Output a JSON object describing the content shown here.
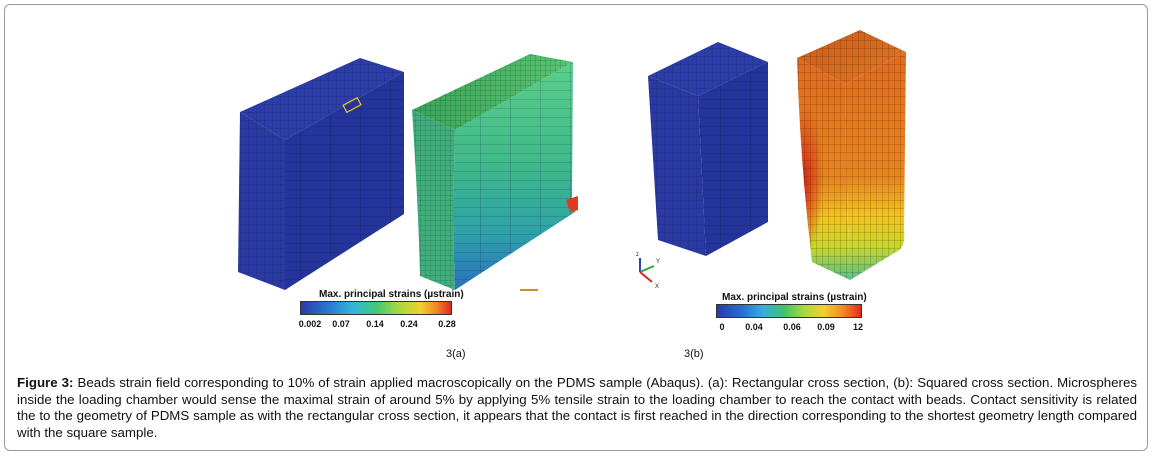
{
  "figure": {
    "panel_a": {
      "label": "3(a)",
      "legend_title": "Max. principal strains (µstrain)",
      "ticks": [
        "0.002",
        "0.07",
        "0.14",
        "0.24",
        "0.28"
      ]
    },
    "panel_b": {
      "label": "3(b)",
      "legend_title": "Max. principal strains (µstrain)",
      "ticks": [
        "0",
        "0.04",
        "0.06",
        "0.09",
        "12"
      ]
    },
    "triad": {
      "z": "z",
      "y": "Y",
      "x": "X"
    }
  },
  "caption": {
    "label": "Figure 3:",
    "text": " Beads strain field corresponding to 10% of strain applied macroscopically on the PDMS sample (Abaqus). (a): Rectangular cross section, (b): Squared cross section. Microspheres inside the loading chamber would sense the maximal strain of around 5% by applying 5% tensile strain to the loading chamber to reach the contact with beads. Contact sensitivity is related the to the geometry of PDMS sample as with the rectangular cross section, it appears that the contact is first reached in the direction corresponding to the shortest geometry length compared with the square sample."
  },
  "colors": {
    "mesh_blue": "#2a3a9c",
    "mesh_green": "#3cba7a",
    "mesh_orange": "#e4741e",
    "mesh_red": "#d42a18"
  }
}
